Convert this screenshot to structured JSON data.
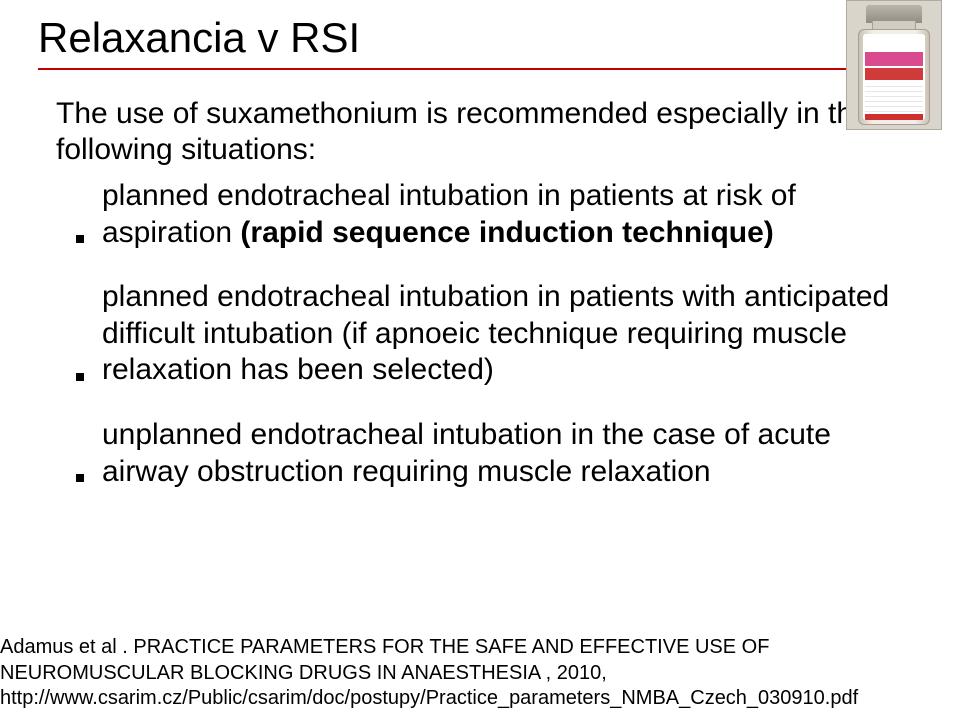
{
  "title": "Relaxancia v RSI",
  "intro": "The use of suxamethonium is recommended especially in the following situations:",
  "bullets": [
    {
      "pre": "planned endotracheal intubation in patients at risk of aspiration ",
      "bold": "(rapid sequence induction technique)",
      "post": ""
    },
    {
      "pre": "planned endotracheal intubation in patients with anticipated difficult intubation (if apnoeic technique requiring muscle relaxation has been selected)",
      "bold": "",
      "post": ""
    },
    {
      "pre": "unplanned endotracheal intubation in the case of acute airway obstruction requiring muscle relaxation",
      "bold": "",
      "post": ""
    }
  ],
  "citation": {
    "line1": "Adamus et al . PRACTICE PARAMETERS FOR THE SAFE AND EFFECTIVE USE OF NEUROMUSCULAR BLOCKING DRUGS IN ANAESTHESIA , 2010, http://www.csarim.cz/Public/csarim/doc/postupy/Practice_parameters_NMBA_Czech_030910.pdf"
  },
  "colors": {
    "underline": "#bf0000",
    "text": "#000000",
    "background": "#ffffff"
  }
}
